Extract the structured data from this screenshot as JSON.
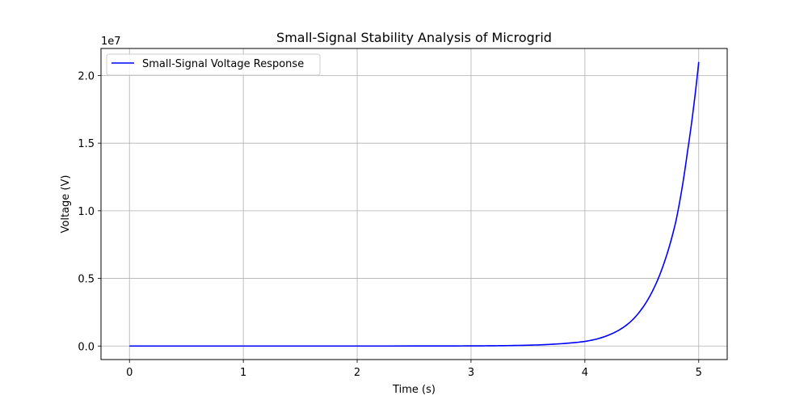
{
  "chart_data": {
    "type": "line",
    "title": "Small-Signal Stability Analysis of Microgrid",
    "xlabel": "Time (s)",
    "ylabel": "Voltage (V)",
    "y_offset_text": "1e7",
    "xlim": [
      -0.25,
      5.25
    ],
    "ylim": [
      -1000000,
      22000000
    ],
    "x_ticks": [
      0,
      1,
      2,
      3,
      4,
      5
    ],
    "x_tick_labels": [
      "0",
      "1",
      "2",
      "3",
      "4",
      "5"
    ],
    "y_ticks": [
      0,
      5000000,
      10000000,
      15000000,
      20000000
    ],
    "y_tick_labels": [
      "0.0",
      "0.5",
      "1.0",
      "1.5",
      "2.0"
    ],
    "grid": true,
    "legend_position": "upper-left",
    "series": [
      {
        "name": "Small-Signal Voltage Response",
        "color": "#0000ff",
        "x": [
          0,
          2.5,
          3.0,
          3.25,
          3.5,
          3.75,
          4.0,
          4.1,
          4.2,
          4.3,
          4.4,
          4.5,
          4.6,
          4.7,
          4.8,
          4.9,
          5.0
        ],
        "y": [
          1,
          2500,
          10000,
          25000,
          60000,
          150000,
          340000,
          510000,
          780000,
          1180000,
          1790000,
          2750000,
          4170000,
          6250000,
          9250000,
          14300000,
          21000000
        ]
      }
    ]
  }
}
